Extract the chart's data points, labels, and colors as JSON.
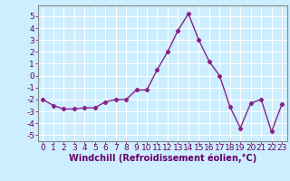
{
  "x": [
    0,
    1,
    2,
    3,
    4,
    5,
    6,
    7,
    8,
    9,
    10,
    11,
    12,
    13,
    14,
    15,
    16,
    17,
    18,
    19,
    20,
    21,
    22,
    23
  ],
  "y": [
    -2.0,
    -2.5,
    -2.8,
    -2.8,
    -2.7,
    -2.7,
    -2.2,
    -2.0,
    -2.0,
    -1.2,
    -1.2,
    0.5,
    2.0,
    3.8,
    5.2,
    3.0,
    1.2,
    0.0,
    -2.6,
    -4.4,
    -2.3,
    -2.0,
    -4.7,
    -2.4
  ],
  "line_color": "#882288",
  "marker": "D",
  "marker_size": 2.2,
  "bg_color": "#cceeff",
  "grid_color": "#ffffff",
  "xlabel": "Windchill (Refroidissement éolien,°C)",
  "xlim": [
    -0.5,
    23.5
  ],
  "ylim": [
    -5.5,
    5.9
  ],
  "yticks": [
    -5,
    -4,
    -3,
    -2,
    -1,
    0,
    1,
    2,
    3,
    4,
    5
  ],
  "xticks": [
    0,
    1,
    2,
    3,
    4,
    5,
    6,
    7,
    8,
    9,
    10,
    11,
    12,
    13,
    14,
    15,
    16,
    17,
    18,
    19,
    20,
    21,
    22,
    23
  ],
  "tick_label_size": 6.5,
  "xlabel_size": 7.0,
  "line_width": 1.0
}
